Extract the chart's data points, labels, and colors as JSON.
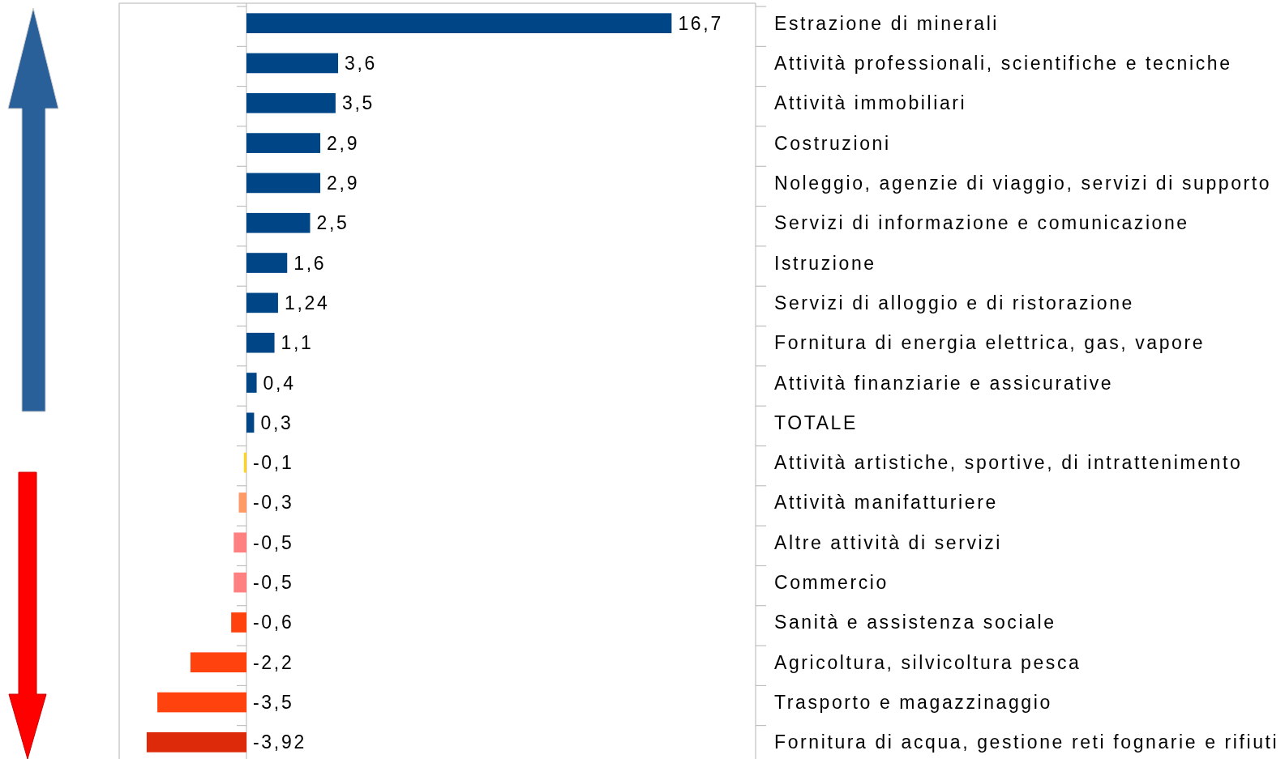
{
  "chart_data": {
    "type": "bar",
    "orientation": "horizontal",
    "categories": [
      "Estrazione di minerali",
      "Attività professionali, scientifiche e tecniche",
      "Attività immobiliari",
      "Costruzioni",
      "Noleggio, agenzie di viaggio, servizi di supporto",
      "Servizi di informazione e comunicazione",
      "Istruzione",
      "Servizi di alloggio e di ristorazione",
      "Fornitura di energia elettrica, gas, vapore",
      "Attività finanziarie e assicurative",
      "TOTALE",
      "Attività artistiche, sportive, di intrattenimento",
      "Attività manifatturiere",
      "Altre attività di servizi",
      "Commercio",
      "Sanità e assistenza sociale",
      "Agricoltura, silvicoltura pesca",
      "Trasporto e magazzinaggio",
      "Fornitura di acqua, gestione reti fognarie e rifiuti"
    ],
    "values": [
      16.7,
      3.6,
      3.5,
      2.9,
      2.9,
      2.5,
      1.6,
      1.24,
      1.1,
      0.4,
      0.3,
      -0.1,
      -0.3,
      -0.5,
      -0.5,
      -0.6,
      -2.2,
      -3.5,
      -3.92
    ],
    "colors": [
      "#004586",
      "#004586",
      "#004586",
      "#004586",
      "#004586",
      "#004586",
      "#004586",
      "#004586",
      "#004586",
      "#004586",
      "#004586",
      "#ffd320",
      "#ff9966",
      "#ff8080",
      "#ff8080",
      "#ff420e",
      "#ff420e",
      "#ff420e",
      "#dd2a0b"
    ],
    "value_labels": [
      "16,7",
      "3,6",
      "3,5",
      "2,9",
      "2,9",
      "2,5",
      "1,6",
      "1,24",
      "1,1",
      "0,4",
      "0,3",
      "-0,1",
      "-0,3",
      "-0,5",
      "-0,5",
      "-0,6",
      "-2,2",
      "-3,5",
      "-3,92"
    ],
    "xlim": [
      -5,
      20
    ],
    "tick_labels": "y"
  }
}
